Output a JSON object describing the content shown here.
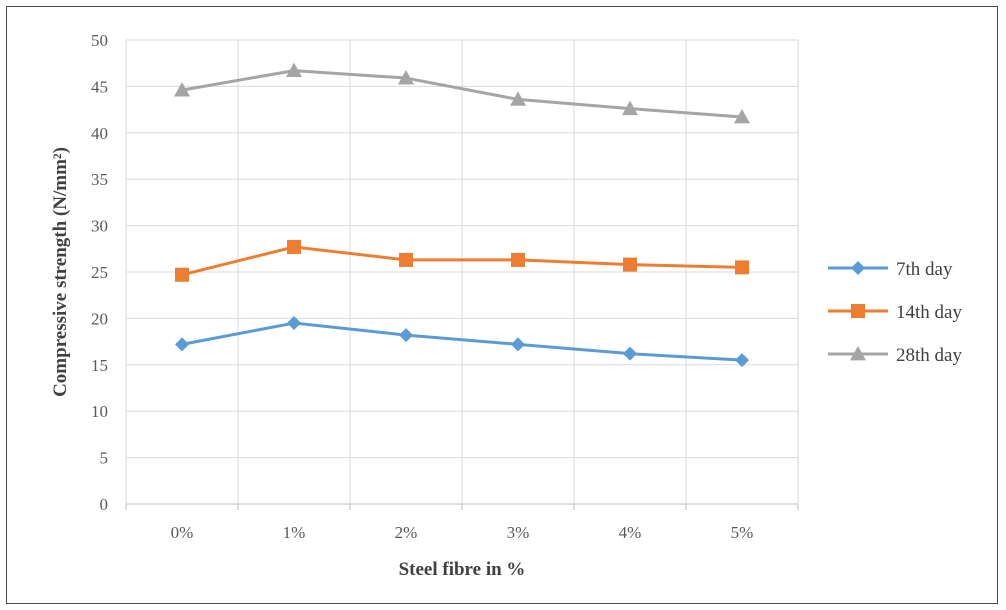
{
  "chart_data": {
    "type": "line",
    "categories": [
      "0%",
      "1%",
      "2%",
      "3%",
      "4%",
      "5%"
    ],
    "series": [
      {
        "name": "7th day",
        "values": [
          17.2,
          19.5,
          18.2,
          17.2,
          16.2,
          15.5
        ],
        "color": "#5b9bd5",
        "marker": "diamond"
      },
      {
        "name": "14th day",
        "values": [
          24.7,
          27.7,
          26.3,
          26.3,
          25.8,
          25.5
        ],
        "color": "#ed7d31",
        "marker": "square"
      },
      {
        "name": "28th day",
        "values": [
          44.6,
          46.7,
          45.9,
          43.6,
          42.6,
          41.7
        ],
        "color": "#a5a5a5",
        "marker": "triangle"
      }
    ],
    "xlabel": "Steel fibre in %",
    "ylabel": "Compressive strength (N/mm²)",
    "ylim": [
      0,
      50
    ],
    "yticks": [
      0,
      5,
      10,
      15,
      20,
      25,
      30,
      35,
      40,
      45,
      50
    ],
    "grid": true,
    "legend_position": "right"
  }
}
